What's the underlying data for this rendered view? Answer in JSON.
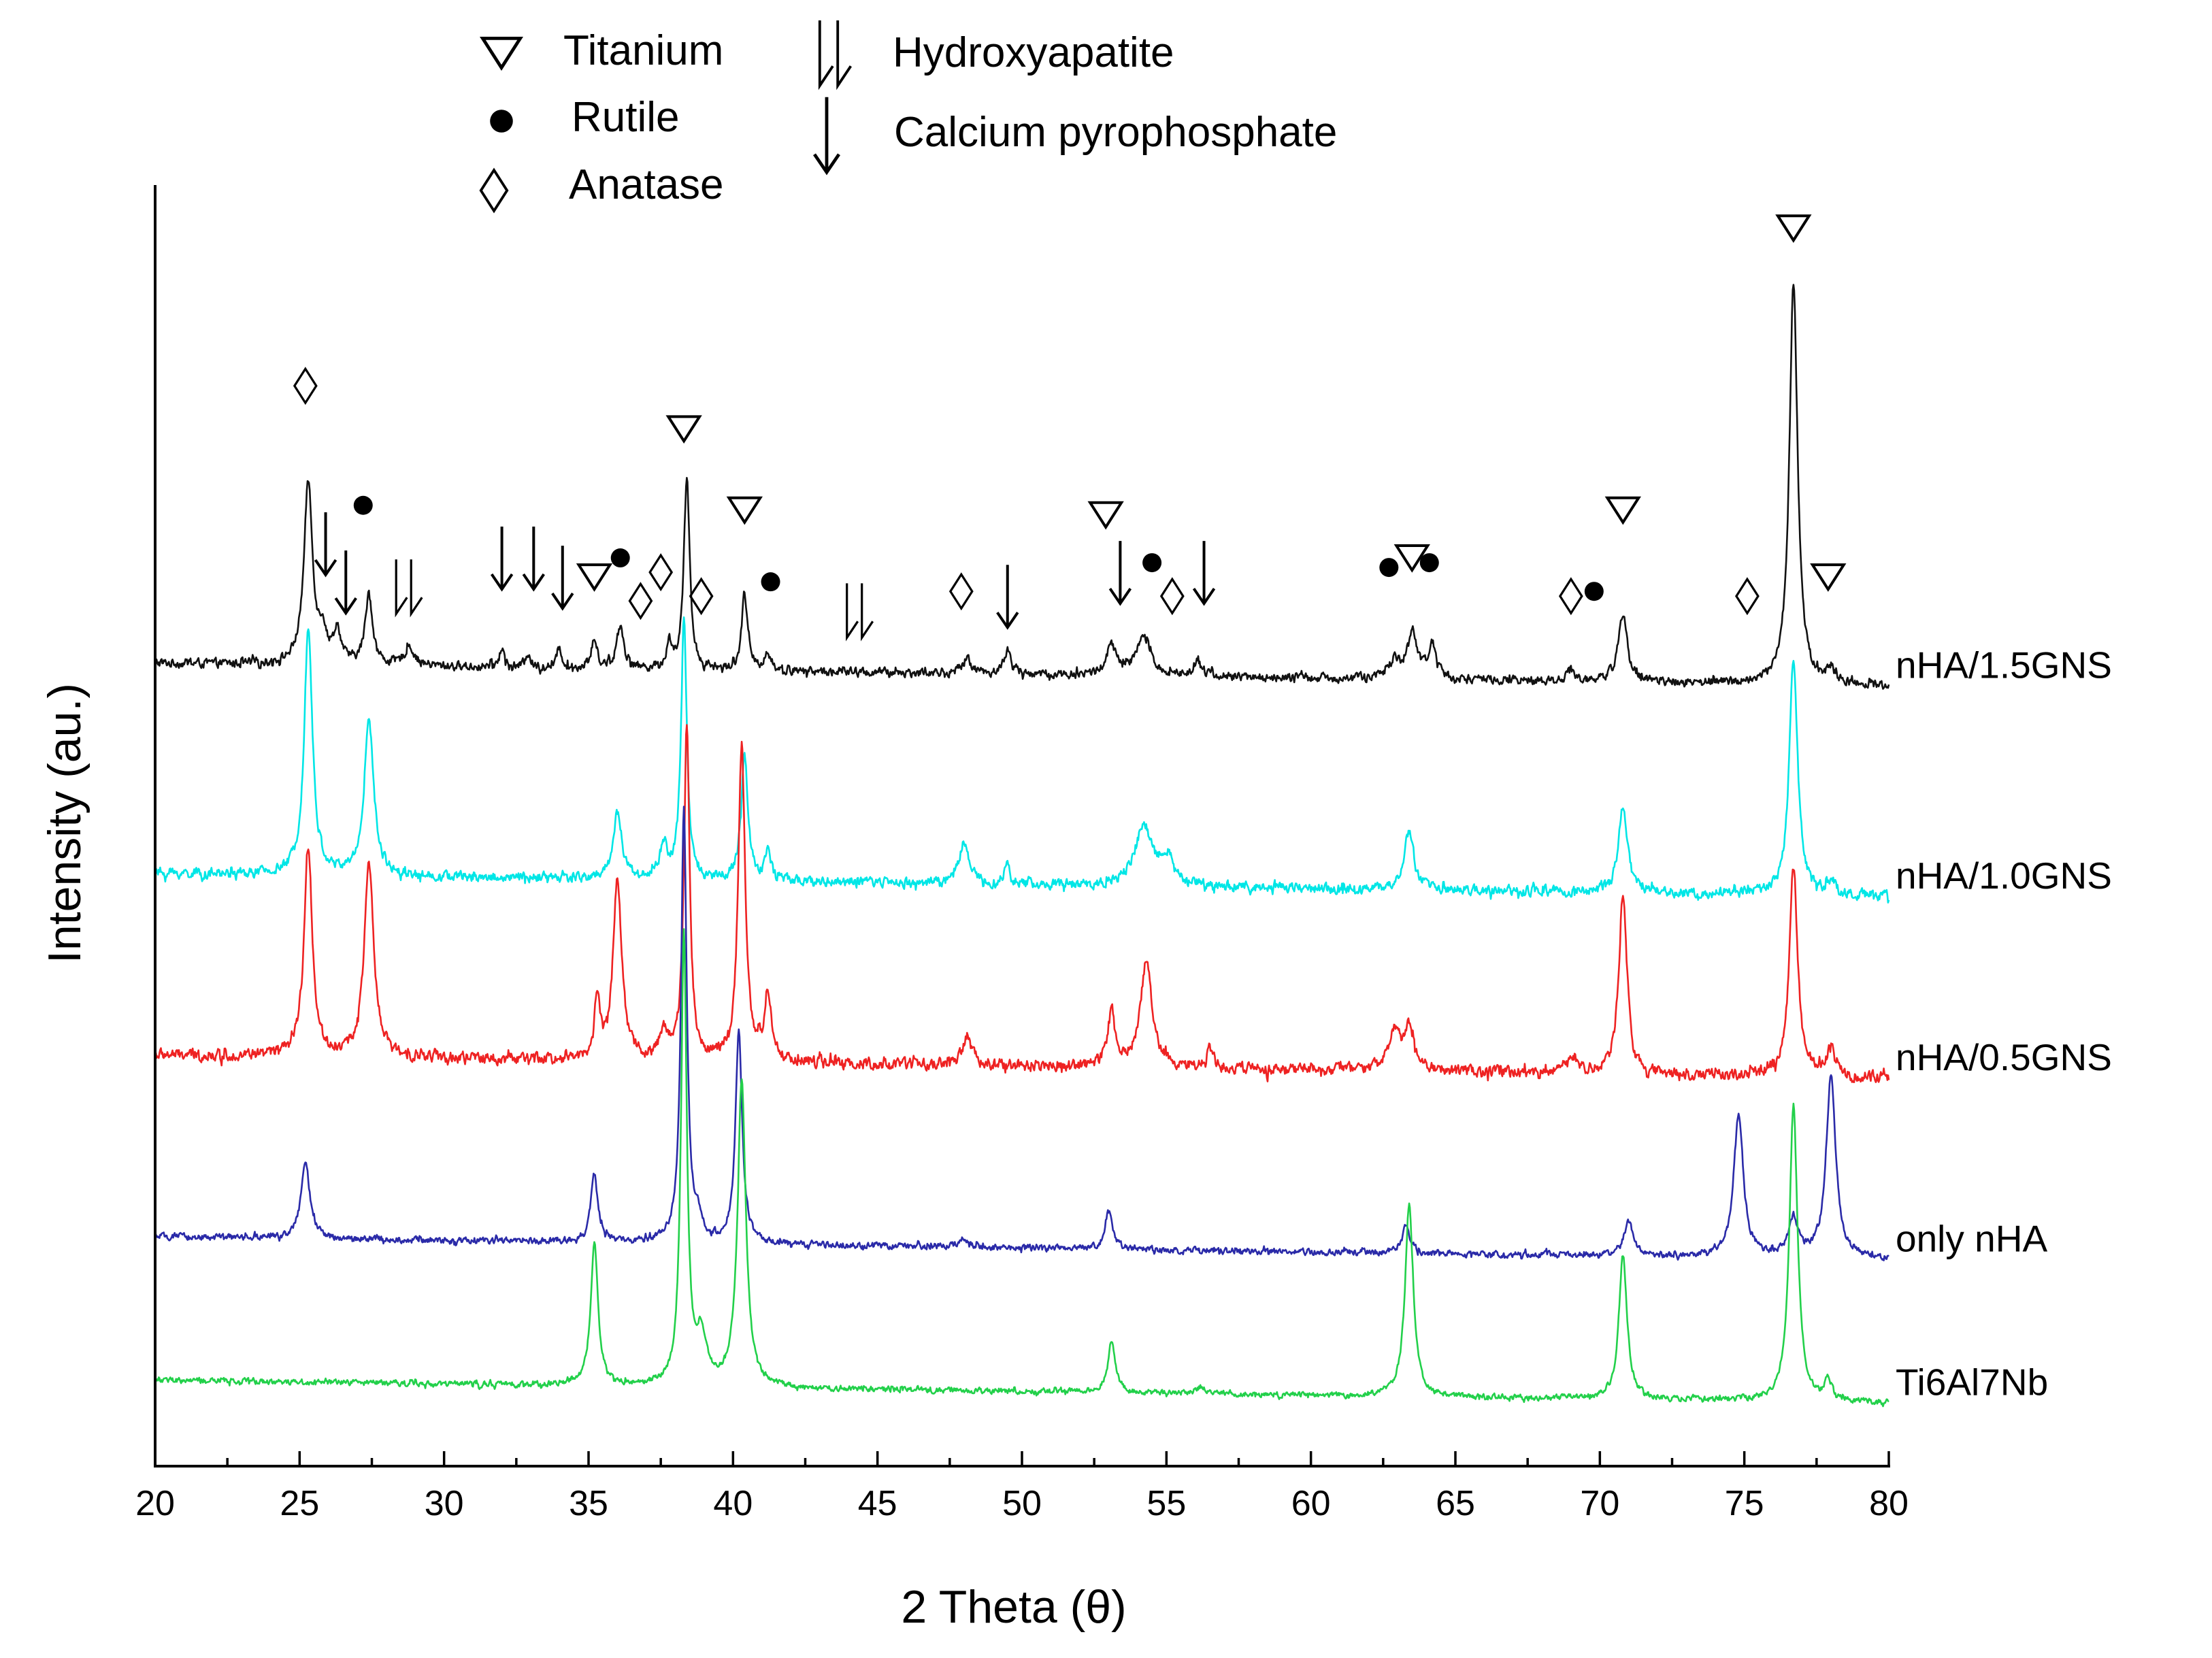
{
  "chart_data": {
    "type": "line",
    "title": "",
    "xlabel": "2 Theta (θ)",
    "ylabel": "Intensity (au.)",
    "xlim": [
      20,
      80
    ],
    "x_major_ticks": [
      20,
      25,
      30,
      35,
      40,
      45,
      50,
      55,
      60,
      65,
      70,
      75,
      80
    ],
    "x_tick_labels": [
      "20",
      "25",
      "30",
      "35",
      "40",
      "45",
      "50",
      "55",
      "60",
      "65",
      "70",
      "75",
      "80"
    ],
    "y_units": "arbitrary (vertically offset stacked patterns)",
    "legend": {
      "placement": "top-center",
      "entries": [
        {
          "symbol": "∇",
          "label": "Titanium"
        },
        {
          "symbol": "●",
          "label": "Rutile"
        },
        {
          "symbol": "◊",
          "label": "Anatase"
        },
        {
          "symbol": "⇂⇂",
          "label": "Hydroxyapatite"
        },
        {
          "symbol": "↓",
          "label": "Calcium pyrophosphate"
        }
      ]
    },
    "series": [
      {
        "name": "nHA/1.5GNS",
        "color": "#111111",
        "baseline": 7.2,
        "noise": 0.07,
        "peaks": [
          [
            25.3,
            1.9,
            0.18
          ],
          [
            25.8,
            0.3,
            0.15
          ],
          [
            26.3,
            0.35,
            0.15
          ],
          [
            27.4,
            0.75,
            0.15
          ],
          [
            28.8,
            0.2,
            0.2
          ],
          [
            32.0,
            0.2,
            0.1
          ],
          [
            32.9,
            0.15,
            0.1
          ],
          [
            34.0,
            0.2,
            0.1
          ],
          [
            35.2,
            0.3,
            0.12
          ],
          [
            36.1,
            0.45,
            0.15
          ],
          [
            37.8,
            0.25,
            0.12
          ],
          [
            38.4,
            2.0,
            0.12
          ],
          [
            40.4,
            0.8,
            0.12
          ],
          [
            41.2,
            0.2,
            0.12
          ],
          [
            48.1,
            0.15,
            0.2
          ],
          [
            49.5,
            0.25,
            0.15
          ],
          [
            53.1,
            0.3,
            0.2
          ],
          [
            54.2,
            0.4,
            0.3
          ],
          [
            56.1,
            0.2,
            0.15
          ],
          [
            62.9,
            0.2,
            0.2
          ],
          [
            63.5,
            0.5,
            0.2
          ],
          [
            64.2,
            0.35,
            0.18
          ],
          [
            69.0,
            0.1,
            0.2
          ],
          [
            70.8,
            0.7,
            0.2
          ],
          [
            76.7,
            4.2,
            0.17
          ],
          [
            78.0,
            0.15,
            0.15
          ]
        ]
      },
      {
        "name": "nHA/1.0GNS",
        "color": "#00e6e6",
        "baseline": 5.0,
        "noise": 0.08,
        "peaks": [
          [
            25.3,
            2.6,
            0.17
          ],
          [
            27.4,
            1.6,
            0.2
          ],
          [
            36.0,
            0.7,
            0.18
          ],
          [
            37.6,
            0.35,
            0.15
          ],
          [
            38.3,
            2.7,
            0.12
          ],
          [
            40.4,
            1.3,
            0.14
          ],
          [
            41.2,
            0.3,
            0.12
          ],
          [
            48.0,
            0.45,
            0.2
          ],
          [
            49.5,
            0.2,
            0.12
          ],
          [
            54.2,
            0.6,
            0.35
          ],
          [
            55.0,
            0.3,
            0.3
          ],
          [
            63.4,
            0.6,
            0.2
          ],
          [
            70.8,
            0.9,
            0.18
          ],
          [
            76.7,
            2.5,
            0.17
          ],
          [
            78.0,
            0.15,
            0.15
          ]
        ]
      },
      {
        "name": "nHA/0.5GNS",
        "color": "#ee2222",
        "baseline": 3.1,
        "noise": 0.09,
        "peaks": [
          [
            25.3,
            2.2,
            0.17
          ],
          [
            27.4,
            2.0,
            0.2
          ],
          [
            35.3,
            0.6,
            0.12
          ],
          [
            36.0,
            1.9,
            0.18
          ],
          [
            37.6,
            0.3,
            0.15
          ],
          [
            38.4,
            3.5,
            0.12
          ],
          [
            40.3,
            3.3,
            0.14
          ],
          [
            41.2,
            0.7,
            0.15
          ],
          [
            48.1,
            0.3,
            0.2
          ],
          [
            53.1,
            0.6,
            0.15
          ],
          [
            54.3,
            1.1,
            0.25
          ],
          [
            56.5,
            0.2,
            0.15
          ],
          [
            62.9,
            0.4,
            0.25
          ],
          [
            63.4,
            0.45,
            0.2
          ],
          [
            69.0,
            0.2,
            0.2
          ],
          [
            70.8,
            1.9,
            0.17
          ],
          [
            76.7,
            2.2,
            0.17
          ],
          [
            78.0,
            0.3,
            0.15
          ]
        ]
      },
      {
        "name": "only nHA",
        "color": "#2a2aa8",
        "baseline": 1.2,
        "noise": 0.05,
        "peaks": [
          [
            25.2,
            0.8,
            0.18
          ],
          [
            35.2,
            0.7,
            0.15
          ],
          [
            38.3,
            4.5,
            0.12
          ],
          [
            38.8,
            0.2,
            0.15
          ],
          [
            40.2,
            2.2,
            0.14
          ],
          [
            48.0,
            0.1,
            0.2
          ],
          [
            53.0,
            0.4,
            0.15
          ],
          [
            63.3,
            0.3,
            0.15
          ],
          [
            71.0,
            0.35,
            0.2
          ],
          [
            74.8,
            1.5,
            0.2
          ],
          [
            76.7,
            0.4,
            0.2
          ],
          [
            78.0,
            1.9,
            0.2
          ]
        ]
      },
      {
        "name": "Ti6Al7Nb",
        "color": "#22d04a",
        "baseline": -0.3,
        "noise": 0.045,
        "peaks": [
          [
            35.2,
            1.5,
            0.15
          ],
          [
            38.3,
            4.7,
            0.12
          ],
          [
            38.9,
            0.5,
            0.2
          ],
          [
            40.3,
            3.2,
            0.17
          ],
          [
            53.1,
            0.55,
            0.16
          ],
          [
            56.2,
            0.08,
            0.2
          ],
          [
            63.4,
            2.0,
            0.17
          ],
          [
            70.8,
            1.5,
            0.17
          ],
          [
            76.7,
            3.1,
            0.17
          ],
          [
            77.9,
            0.2,
            0.15
          ]
        ]
      }
    ],
    "annotations": [
      {
        "symbol": "◊",
        "x": 25.2,
        "y": 10.1
      },
      {
        "symbol": "●",
        "x": 27.2,
        "y": 8.85
      },
      {
        "symbol": "↓",
        "x": 25.9,
        "y": 8.45
      },
      {
        "symbol": "↓",
        "x": 26.6,
        "y": 8.05
      },
      {
        "symbol": "⇂⇂",
        "x": 28.6,
        "y": 8.0
      },
      {
        "symbol": "↓",
        "x": 32.0,
        "y": 8.3
      },
      {
        "symbol": "↓",
        "x": 33.1,
        "y": 8.3
      },
      {
        "symbol": "↓",
        "x": 34.1,
        "y": 8.1
      },
      {
        "symbol": "∇",
        "x": 35.2,
        "y": 8.1
      },
      {
        "symbol": "●",
        "x": 36.1,
        "y": 8.3
      },
      {
        "symbol": "◊",
        "x": 36.8,
        "y": 7.85
      },
      {
        "symbol": "◊",
        "x": 37.5,
        "y": 8.15
      },
      {
        "symbol": "∇",
        "x": 38.3,
        "y": 9.65
      },
      {
        "symbol": "◊",
        "x": 38.9,
        "y": 7.9
      },
      {
        "symbol": "∇",
        "x": 40.4,
        "y": 8.8
      },
      {
        "symbol": "●",
        "x": 41.3,
        "y": 8.05
      },
      {
        "symbol": "⇂⇂",
        "x": 44.2,
        "y": 7.75
      },
      {
        "symbol": "◊",
        "x": 47.9,
        "y": 7.95
      },
      {
        "symbol": "↓",
        "x": 49.5,
        "y": 7.9
      },
      {
        "symbol": "∇",
        "x": 52.9,
        "y": 8.75
      },
      {
        "symbol": "↓",
        "x": 53.4,
        "y": 8.15
      },
      {
        "symbol": "●",
        "x": 54.5,
        "y": 8.25
      },
      {
        "symbol": "◊",
        "x": 55.2,
        "y": 7.9
      },
      {
        "symbol": "↓",
        "x": 56.3,
        "y": 8.15
      },
      {
        "symbol": "●",
        "x": 62.7,
        "y": 8.2
      },
      {
        "symbol": "∇",
        "x": 63.5,
        "y": 8.3
      },
      {
        "symbol": "●",
        "x": 64.1,
        "y": 8.25
      },
      {
        "symbol": "◊",
        "x": 69.0,
        "y": 7.9
      },
      {
        "symbol": "●",
        "x": 69.8,
        "y": 7.95
      },
      {
        "symbol": "∇",
        "x": 70.8,
        "y": 8.8
      },
      {
        "symbol": "◊",
        "x": 75.1,
        "y": 7.9
      },
      {
        "symbol": "∇",
        "x": 76.7,
        "y": 11.75
      },
      {
        "symbol": "∇",
        "x": 77.9,
        "y": 8.1
      }
    ]
  }
}
